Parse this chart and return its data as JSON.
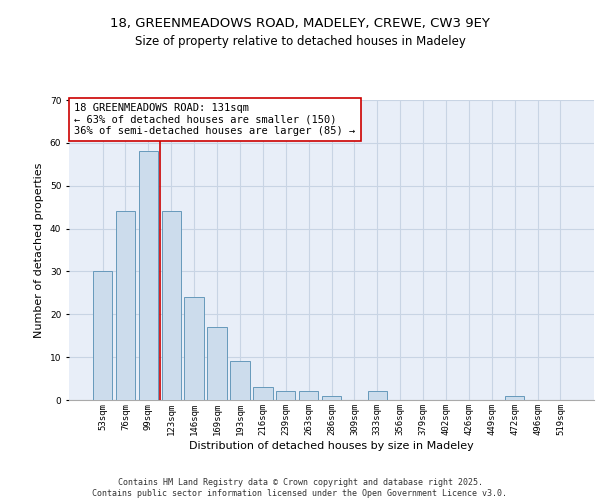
{
  "title1": "18, GREENMEADOWS ROAD, MADELEY, CREWE, CW3 9EY",
  "title2": "Size of property relative to detached houses in Madeley",
  "xlabel": "Distribution of detached houses by size in Madeley",
  "ylabel": "Number of detached properties",
  "categories": [
    "53sqm",
    "76sqm",
    "99sqm",
    "123sqm",
    "146sqm",
    "169sqm",
    "193sqm",
    "216sqm",
    "239sqm",
    "263sqm",
    "286sqm",
    "309sqm",
    "333sqm",
    "356sqm",
    "379sqm",
    "402sqm",
    "426sqm",
    "449sqm",
    "472sqm",
    "496sqm",
    "519sqm"
  ],
  "values": [
    30,
    44,
    58,
    44,
    24,
    17,
    9,
    3,
    2,
    2,
    1,
    0,
    2,
    0,
    0,
    0,
    0,
    0,
    1,
    0,
    0
  ],
  "bar_color": "#ccdcec",
  "bar_edge_color": "#6699bb",
  "grid_color": "#c8d4e4",
  "background_color": "#e8eef8",
  "vline_x": 2.5,
  "vline_color": "#cc0000",
  "annotation_text": "18 GREENMEADOWS ROAD: 131sqm\n← 63% of detached houses are smaller (150)\n36% of semi-detached houses are larger (85) →",
  "annotation_box_color": "white",
  "annotation_box_edge": "#cc0000",
  "ylim": [
    0,
    70
  ],
  "yticks": [
    0,
    10,
    20,
    30,
    40,
    50,
    60,
    70
  ],
  "footer_text": "Contains HM Land Registry data © Crown copyright and database right 2025.\nContains public sector information licensed under the Open Government Licence v3.0.",
  "title1_fontsize": 9.5,
  "title2_fontsize": 8.5,
  "xlabel_fontsize": 8,
  "ylabel_fontsize": 8,
  "tick_fontsize": 6.5,
  "annotation_fontsize": 7.5,
  "footer_fontsize": 6
}
